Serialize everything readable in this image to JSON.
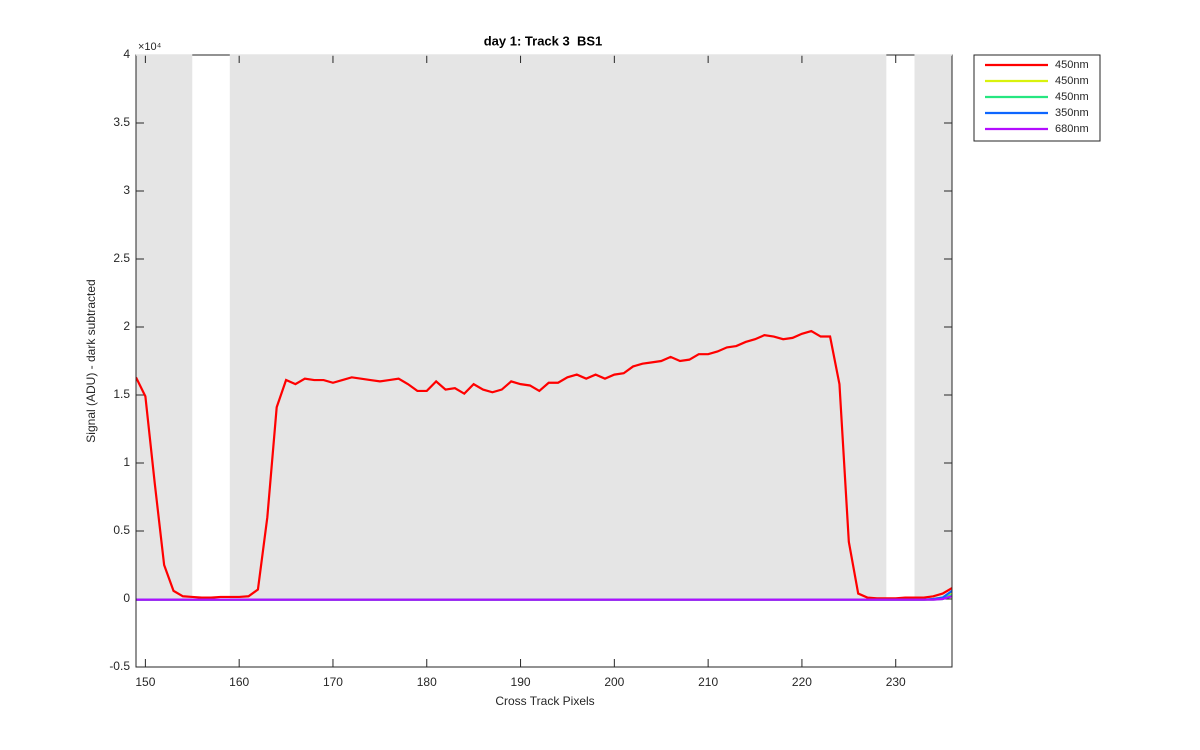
{
  "chart_data": {
    "type": "line",
    "title": "day 1: Track 3  BS1",
    "x_label": "Cross Track Pixels",
    "y_label": "Signal (ADU) - dark subtracted",
    "y_exponent_label": "×10⁴",
    "xlim": [
      149,
      236
    ],
    "xticks": [
      150,
      160,
      170,
      180,
      190,
      200,
      210,
      220,
      230
    ],
    "ylim": [
      -0.5,
      4
    ],
    "yticks": [
      -0.5,
      0,
      0.5,
      1,
      1.5,
      2,
      2.5,
      3,
      3.5,
      4
    ],
    "shade_color": "#e5e5e5",
    "shaded_y": [
      0,
      4
    ],
    "shaded_regions": [
      [
        149,
        155
      ],
      [
        159,
        229
      ],
      [
        232,
        236
      ]
    ],
    "legend_position": "outside-top-right",
    "x": [
      149,
      150,
      151,
      152,
      153,
      154,
      155,
      156,
      157,
      158,
      159,
      160,
      161,
      162,
      163,
      164,
      165,
      166,
      167,
      168,
      169,
      170,
      171,
      172,
      173,
      174,
      175,
      176,
      177,
      178,
      179,
      180,
      181,
      182,
      183,
      184,
      185,
      186,
      187,
      188,
      189,
      190,
      191,
      192,
      193,
      194,
      195,
      196,
      197,
      198,
      199,
      200,
      201,
      202,
      203,
      204,
      205,
      206,
      207,
      208,
      209,
      210,
      211,
      212,
      213,
      214,
      215,
      216,
      217,
      218,
      219,
      220,
      221,
      222,
      223,
      224,
      225,
      226,
      227,
      228,
      229,
      230,
      231,
      232,
      233,
      234,
      235,
      236
    ],
    "series": [
      {
        "name": "450nm",
        "color": "#ff0000",
        "values": [
          1.63,
          1.49,
          0.85,
          0.25,
          0.06,
          0.02,
          0.015,
          0.01,
          0.01,
          0.015,
          0.015,
          0.015,
          0.02,
          0.07,
          0.6,
          1.41,
          1.61,
          1.58,
          1.62,
          1.61,
          1.61,
          1.59,
          1.61,
          1.63,
          1.62,
          1.61,
          1.6,
          1.61,
          1.62,
          1.58,
          1.53,
          1.53,
          1.6,
          1.54,
          1.55,
          1.51,
          1.58,
          1.54,
          1.52,
          1.54,
          1.6,
          1.58,
          1.57,
          1.53,
          1.59,
          1.59,
          1.63,
          1.65,
          1.62,
          1.65,
          1.62,
          1.65,
          1.66,
          1.71,
          1.73,
          1.74,
          1.75,
          1.78,
          1.75,
          1.76,
          1.8,
          1.8,
          1.82,
          1.85,
          1.86,
          1.89,
          1.91,
          1.94,
          1.93,
          1.91,
          1.92,
          1.95,
          1.97,
          1.93,
          1.93,
          1.58,
          0.42,
          0.04,
          0.01,
          0.005,
          0.005,
          0.005,
          0.01,
          0.01,
          0.01,
          0.02,
          0.04,
          0.08
        ]
      },
      {
        "name": "450nm",
        "color": "#d9f20d",
        "values": [
          -0.005,
          -0.005,
          -0.005,
          -0.005,
          -0.005,
          -0.005,
          -0.005,
          -0.005,
          -0.005,
          -0.005,
          -0.005,
          -0.005,
          -0.005,
          -0.005,
          -0.005,
          -0.005,
          -0.005,
          -0.005,
          -0.005,
          -0.005,
          -0.005,
          -0.005,
          -0.005,
          -0.005,
          -0.005,
          -0.005,
          -0.005,
          -0.005,
          -0.005,
          -0.005,
          -0.005,
          -0.005,
          -0.005,
          -0.005,
          -0.005,
          -0.005,
          -0.005,
          -0.005,
          -0.005,
          -0.005,
          -0.005,
          -0.005,
          -0.005,
          -0.005,
          -0.005,
          -0.005,
          -0.005,
          -0.005,
          -0.005,
          -0.005,
          -0.005,
          -0.005,
          -0.005,
          -0.005,
          -0.005,
          -0.005,
          -0.005,
          -0.005,
          -0.005,
          -0.005,
          -0.005,
          -0.005,
          -0.005,
          -0.005,
          -0.005,
          -0.005,
          -0.005,
          -0.005,
          -0.005,
          -0.005,
          -0.005,
          -0.005,
          -0.005,
          -0.005,
          -0.005,
          -0.005,
          -0.005,
          -0.005,
          -0.005,
          -0.005,
          -0.005,
          -0.005,
          -0.005,
          -0.005,
          -0.005,
          0,
          0.01,
          0.05
        ]
      },
      {
        "name": "450nm",
        "color": "#26e680",
        "values": [
          -0.005,
          -0.005,
          -0.005,
          -0.005,
          -0.005,
          -0.005,
          -0.005,
          -0.005,
          -0.005,
          -0.005,
          -0.005,
          -0.005,
          -0.005,
          -0.005,
          -0.005,
          -0.005,
          -0.005,
          -0.005,
          -0.005,
          -0.005,
          -0.005,
          -0.005,
          -0.005,
          -0.005,
          -0.005,
          -0.005,
          -0.005,
          -0.005,
          -0.005,
          -0.005,
          -0.005,
          -0.005,
          -0.005,
          -0.005,
          -0.005,
          -0.005,
          -0.005,
          -0.005,
          -0.005,
          -0.005,
          -0.005,
          -0.005,
          -0.005,
          -0.005,
          -0.005,
          -0.005,
          -0.005,
          -0.005,
          -0.005,
          -0.005,
          -0.005,
          -0.005,
          -0.005,
          -0.005,
          -0.005,
          -0.005,
          -0.005,
          -0.005,
          -0.005,
          -0.005,
          -0.005,
          -0.005,
          -0.005,
          -0.005,
          -0.005,
          -0.005,
          -0.005,
          -0.005,
          -0.005,
          -0.005,
          -0.005,
          -0.005,
          -0.005,
          -0.005,
          -0.005,
          -0.005,
          -0.005,
          -0.005,
          -0.005,
          -0.005,
          -0.005,
          -0.005,
          -0.005,
          -0.005,
          -0.005,
          -0.005,
          0,
          0.03
        ]
      },
      {
        "name": "350nm",
        "color": "#0d66ff",
        "values": [
          -0.005,
          -0.005,
          -0.005,
          -0.005,
          -0.005,
          -0.005,
          -0.005,
          -0.005,
          -0.005,
          -0.005,
          -0.005,
          -0.005,
          -0.005,
          -0.005,
          -0.005,
          -0.005,
          -0.005,
          -0.005,
          -0.005,
          -0.005,
          -0.005,
          -0.005,
          -0.005,
          -0.005,
          -0.005,
          -0.005,
          -0.005,
          -0.005,
          -0.005,
          -0.005,
          -0.005,
          -0.005,
          -0.005,
          -0.005,
          -0.005,
          -0.005,
          -0.005,
          -0.005,
          -0.005,
          -0.005,
          -0.005,
          -0.005,
          -0.005,
          -0.005,
          -0.005,
          -0.005,
          -0.005,
          -0.005,
          -0.005,
          -0.005,
          -0.005,
          -0.005,
          -0.005,
          -0.005,
          -0.005,
          -0.005,
          -0.005,
          -0.005,
          -0.005,
          -0.005,
          -0.005,
          -0.005,
          -0.005,
          -0.005,
          -0.005,
          -0.005,
          -0.005,
          -0.005,
          -0.005,
          -0.005,
          -0.005,
          -0.005,
          -0.005,
          -0.005,
          -0.005,
          -0.005,
          -0.005,
          -0.005,
          -0.005,
          -0.005,
          -0.005,
          -0.005,
          -0.005,
          -0.005,
          -0.005,
          0,
          0.01,
          0.06
        ]
      },
      {
        "name": "680nm",
        "color": "#b30dff",
        "values": [
          -0.005,
          -0.005,
          -0.005,
          -0.005,
          -0.005,
          -0.005,
          -0.005,
          -0.005,
          -0.005,
          -0.005,
          -0.005,
          -0.005,
          -0.005,
          -0.005,
          -0.005,
          -0.005,
          -0.005,
          -0.005,
          -0.005,
          -0.005,
          -0.005,
          -0.005,
          -0.005,
          -0.005,
          -0.005,
          -0.005,
          -0.005,
          -0.005,
          -0.005,
          -0.005,
          -0.005,
          -0.005,
          -0.005,
          -0.005,
          -0.005,
          -0.005,
          -0.005,
          -0.005,
          -0.005,
          -0.005,
          -0.005,
          -0.005,
          -0.005,
          -0.005,
          -0.005,
          -0.005,
          -0.005,
          -0.005,
          -0.005,
          -0.005,
          -0.005,
          -0.005,
          -0.005,
          -0.005,
          -0.005,
          -0.005,
          -0.005,
          -0.005,
          -0.005,
          -0.005,
          -0.005,
          -0.005,
          -0.005,
          -0.005,
          -0.005,
          -0.005,
          -0.005,
          -0.005,
          -0.005,
          -0.005,
          -0.005,
          -0.005,
          -0.005,
          -0.005,
          -0.005,
          -0.005,
          -0.005,
          -0.005,
          -0.005,
          -0.005,
          -0.005,
          -0.005,
          -0.005,
          -0.005,
          -0.005,
          -0.005,
          0,
          0.02
        ]
      }
    ]
  }
}
